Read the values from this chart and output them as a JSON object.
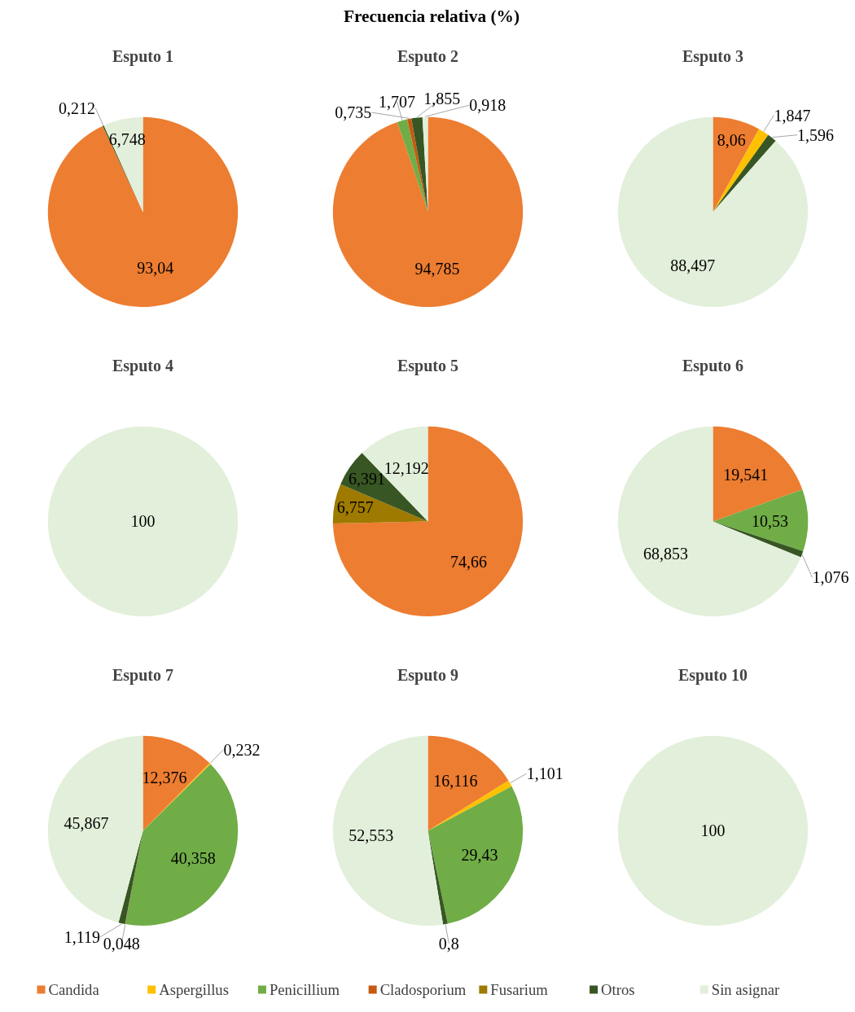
{
  "chart_data": [
    {
      "type": "pie",
      "title": "Esputo 1",
      "legend": "bottom",
      "annotations": [
        "Frecuencia relativa (%)"
      ],
      "categories": [
        "Candida",
        "Aspergillus",
        "Penicillium",
        "Cladosporium",
        "Fusarium",
        "Otros",
        "Sin asignar"
      ],
      "colors": [
        "#ed7d31",
        "#ffc000",
        "#70ad47",
        "#c55a11",
        "#9e7a00",
        "#375623",
        "#e2efda"
      ],
      "values": [
        93.04,
        null,
        null,
        null,
        null,
        0.212,
        6.748
      ],
      "value_labels": [
        "93,04",
        null,
        null,
        null,
        null,
        "0,212",
        "6,748"
      ]
    },
    {
      "type": "pie",
      "title": "Esputo 2",
      "categories": [
        null,
        null,
        null,
        null,
        null,
        null,
        null
      ],
      "colors": [
        "#ed7d31",
        "#ffc000",
        "#70ad47",
        "#c55a11",
        "#9e7a00",
        "#375623",
        "#e2efda"
      ],
      "values": [
        94.785,
        null,
        1.707,
        0.735,
        null,
        1.855,
        0.918
      ],
      "value_labels": [
        "94,785",
        null,
        "1,707",
        "0,735",
        null,
        "1,855",
        "0,918"
      ]
    },
    {
      "type": "pie",
      "title": "Esputo 3",
      "categories": [
        null,
        null,
        null,
        null,
        null,
        null,
        null
      ],
      "colors": [
        "#ed7d31",
        "#ffc000",
        "#70ad47",
        "#c55a11",
        "#9e7a00",
        "#375623",
        "#e2efda"
      ],
      "values": [
        8.06,
        1.847,
        null,
        null,
        null,
        1.596,
        88.497
      ],
      "value_labels": [
        "8,06",
        "1,847",
        null,
        null,
        null,
        "1,596",
        "88,497"
      ]
    },
    {
      "type": "pie",
      "title": "Esputo 4",
      "categories": [
        null,
        null,
        null,
        null,
        null,
        null,
        null
      ],
      "colors": [
        "#ed7d31",
        "#ffc000",
        "#70ad47",
        "#c55a11",
        "#9e7a00",
        "#375623",
        "#e2efda"
      ],
      "values": [
        null,
        null,
        null,
        null,
        null,
        null,
        100
      ],
      "value_labels": [
        null,
        null,
        null,
        null,
        null,
        null,
        "100"
      ]
    },
    {
      "type": "pie",
      "title": "Esputo 5",
      "categories": [
        null,
        null,
        null,
        null,
        null,
        null,
        null
      ],
      "colors": [
        "#ed7d31",
        "#ffc000",
        "#70ad47",
        "#c55a11",
        "#9e7a00",
        "#375623",
        "#e2efda"
      ],
      "values": [
        74.66,
        null,
        null,
        null,
        6.757,
        6.391,
        12.192
      ],
      "value_labels": [
        "74,66",
        null,
        null,
        null,
        "6,757",
        "6,391",
        "12,192"
      ]
    },
    {
      "type": "pie",
      "title": "Esputo 6",
      "categories": [
        null,
        null,
        null,
        null,
        null,
        null,
        null
      ],
      "colors": [
        "#ed7d31",
        "#ffc000",
        "#70ad47",
        "#c55a11",
        "#9e7a00",
        "#375623",
        "#e2efda"
      ],
      "values": [
        19.541,
        null,
        10.53,
        null,
        null,
        1.076,
        68.853
      ],
      "value_labels": [
        "19,541",
        null,
        "10,53",
        null,
        null,
        "1,076",
        "68,853"
      ]
    },
    {
      "type": "pie",
      "title": "Esputo 7",
      "categories": [
        null,
        null,
        null,
        null,
        null,
        null,
        null
      ],
      "colors": [
        "#ed7d31",
        "#ffc000",
        "#70ad47",
        "#c55a11",
        "#9e7a00",
        "#375623",
        "#e2efda"
      ],
      "values": [
        12.376,
        0.232,
        40.358,
        0.048,
        null,
        1.119,
        45.867
      ],
      "value_labels": [
        "12,376",
        "0,232",
        "40,358",
        "0,048",
        null,
        "1,119",
        "45,867"
      ]
    },
    {
      "type": "pie",
      "title": "Esputo 9",
      "categories": [
        null,
        null,
        null,
        null,
        null,
        null,
        null
      ],
      "colors": [
        "#ed7d31",
        "#ffc000",
        "#70ad47",
        "#c55a11",
        "#9e7a00",
        "#375623",
        "#e2efda"
      ],
      "values": [
        16.116,
        1.101,
        29.43,
        null,
        null,
        0.8,
        52.553
      ],
      "value_labels": [
        "16,116",
        "1,101",
        "29,43",
        null,
        null,
        "0,8",
        "52,553"
      ]
    },
    {
      "type": "pie",
      "title": "Esputo 10",
      "categories": [
        null,
        null,
        null,
        null,
        null,
        null,
        null
      ],
      "colors": [
        "#ed7d31",
        "#ffc000",
        "#70ad47",
        "#c55a11",
        "#9e7a00",
        "#375623",
        "#e2efda"
      ],
      "values": [
        null,
        null,
        null,
        null,
        null,
        null,
        100
      ],
      "value_labels": [
        null,
        null,
        null,
        null,
        null,
        null,
        "100"
      ]
    }
  ]
}
